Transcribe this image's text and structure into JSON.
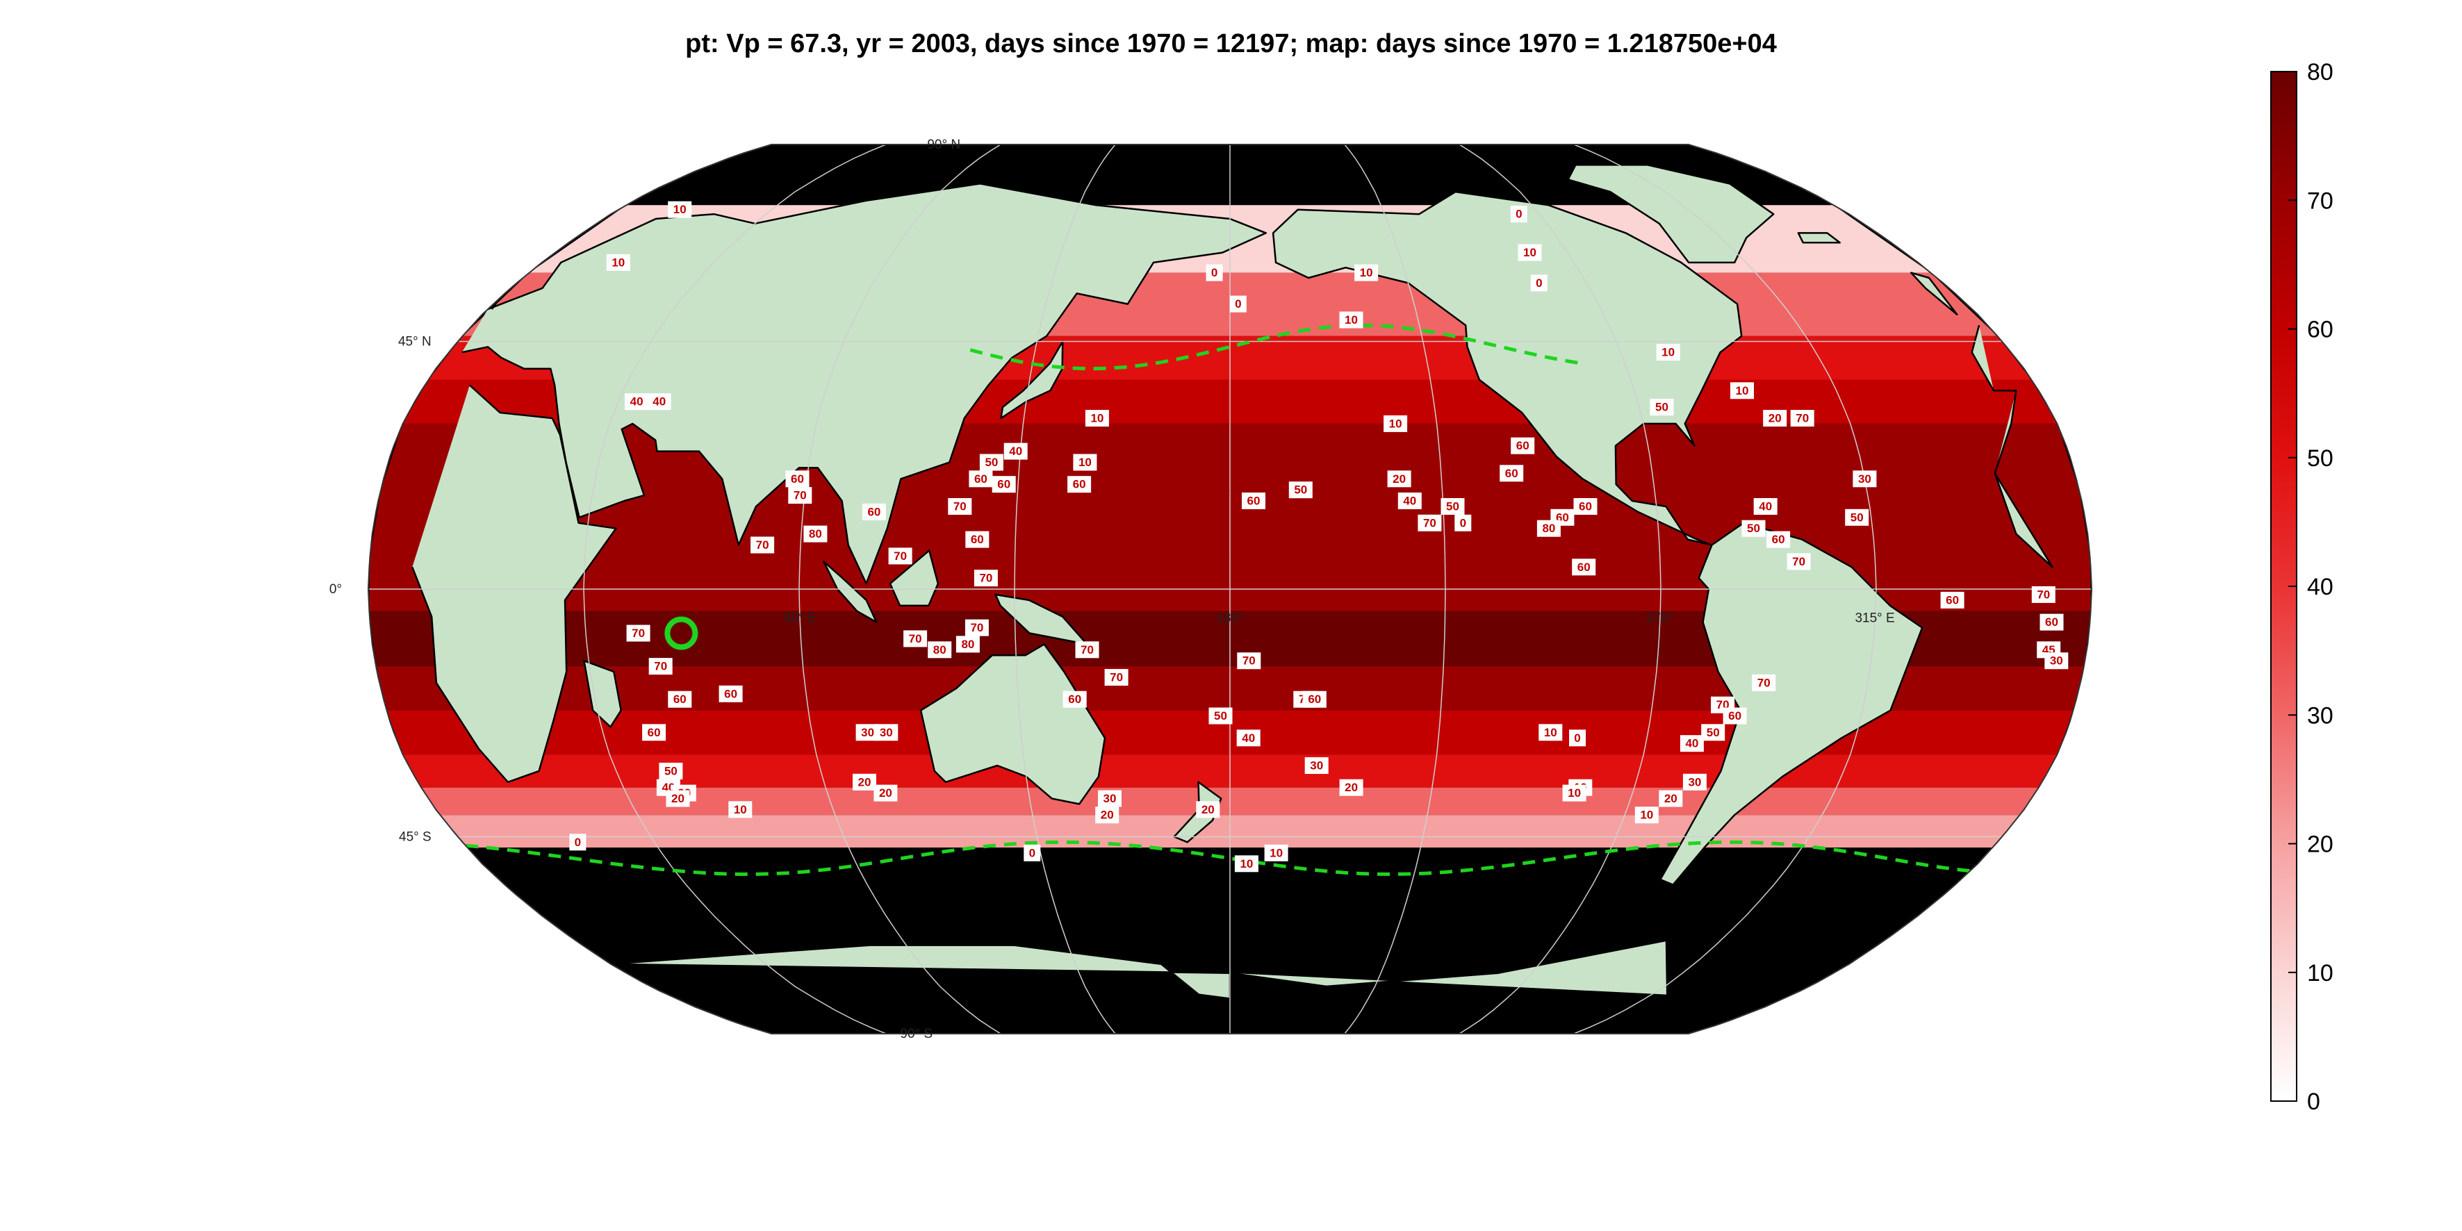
{
  "title": "pt: Vp = 67.3, yr = 2003, days since 1970 = 12197; map: days since 1970 = 1.218750e+04",
  "map": {
    "projection": "Robinson",
    "land_color": "#c9e3c9",
    "background_color": "#000000",
    "graticule_color": "#cfcfcf",
    "lat_labels": [
      "90° N",
      "45° N",
      "0°",
      "45° S",
      "90° S"
    ],
    "lon_labels": [
      "90° E",
      "180°",
      "270°",
      "315° E",
      "0° E"
    ],
    "point_marker": {
      "label": "Vp = 67.3",
      "color": "#1fd41f",
      "lon": 65,
      "lat": -8
    },
    "contour_zero_line_color": "#1fd41f",
    "contour_labels": [
      {
        "t": "70",
        "lon": -10,
        "lat": -1
      },
      {
        "t": "60",
        "lon": -8,
        "lat": -6
      },
      {
        "t": "45",
        "lon": -8,
        "lat": -11
      },
      {
        "t": "30",
        "lon": -6,
        "lat": -13
      },
      {
        "t": "70",
        "lon": 56,
        "lat": -8
      },
      {
        "t": "70",
        "lon": 60,
        "lat": -14
      },
      {
        "t": "60",
        "lon": 63,
        "lat": -20
      },
      {
        "t": "60",
        "lon": 56,
        "lat": -26
      },
      {
        "t": "50",
        "lon": 57,
        "lat": -33
      },
      {
        "t": "40",
        "lon": 55,
        "lat": -36
      },
      {
        "t": "30",
        "lon": 58,
        "lat": -37
      },
      {
        "t": "20",
        "lon": 56,
        "lat": -38
      },
      {
        "t": "10",
        "lon": 69,
        "lat": -40
      },
      {
        "t": "20",
        "lon": 99,
        "lat": -35
      },
      {
        "t": "20",
        "lon": 103,
        "lat": -37
      },
      {
        "t": "60",
        "lon": 74,
        "lat": -19
      },
      {
        "t": "30",
        "lon": 102,
        "lat": -26
      },
      {
        "t": "30",
        "lon": 106,
        "lat": -26
      },
      {
        "t": "70",
        "lon": 114,
        "lat": -9
      },
      {
        "t": "80",
        "lon": 119,
        "lat": -11
      },
      {
        "t": "80",
        "lon": 125,
        "lat": -10
      },
      {
        "t": "70",
        "lon": 127,
        "lat": -7
      },
      {
        "t": "70",
        "lon": 150,
        "lat": -11
      },
      {
        "t": "70",
        "lon": 156,
        "lat": -16
      },
      {
        "t": "60",
        "lon": 147,
        "lat": -20
      },
      {
        "t": "30",
        "lon": 153,
        "lat": -38
      },
      {
        "t": "20",
        "lon": 152,
        "lat": -41
      },
      {
        "t": "20",
        "lon": 175,
        "lat": -40
      },
      {
        "t": "50",
        "lon": 178,
        "lat": -23
      },
      {
        "t": "40",
        "lon": 184,
        "lat": -27
      },
      {
        "t": "30",
        "lon": 199,
        "lat": -32
      },
      {
        "t": "20",
        "lon": 207,
        "lat": -36
      },
      {
        "t": "70",
        "lon": 184,
        "lat": -13
      },
      {
        "t": "70",
        "lon": 196,
        "lat": -20
      },
      {
        "t": "60",
        "lon": 198,
        "lat": -20
      },
      {
        "t": "60",
        "lon": 148,
        "lat": 19
      },
      {
        "t": "10",
        "lon": 149,
        "lat": 23
      },
      {
        "t": "10",
        "lon": 151,
        "lat": 31
      },
      {
        "t": "40",
        "lon": 134,
        "lat": 25
      },
      {
        "t": "50",
        "lon": 129,
        "lat": 23
      },
      {
        "t": "60",
        "lon": 127,
        "lat": 20
      },
      {
        "t": "60",
        "lon": 132,
        "lat": 19
      },
      {
        "t": "70",
        "lon": 123,
        "lat": 15
      },
      {
        "t": "60",
        "lon": 127,
        "lat": 9
      },
      {
        "t": "70",
        "lon": 129,
        "lat": 2
      },
      {
        "t": "60",
        "lon": 105,
        "lat": 14
      },
      {
        "t": "70",
        "lon": 111,
        "lat": 6
      },
      {
        "t": "60",
        "lon": 88,
        "lat": 20
      },
      {
        "t": "70",
        "lon": 89,
        "lat": 17
      },
      {
        "t": "80",
        "lon": 93,
        "lat": 10
      },
      {
        "t": "70",
        "lon": 82,
        "lat": 8
      },
      {
        "t": "40",
        "lon": 49,
        "lat": 34
      },
      {
        "t": "40",
        "lon": 54,
        "lat": 34
      },
      {
        "t": "60",
        "lon": 185,
        "lat": 16
      },
      {
        "t": "50",
        "lon": 195,
        "lat": 18
      },
      {
        "t": "10",
        "lon": 209,
        "lat": 49
      },
      {
        "t": "10",
        "lon": 216,
        "lat": 30
      },
      {
        "t": "20",
        "lon": 216,
        "lat": 20
      },
      {
        "t": "40",
        "lon": 218,
        "lat": 16
      },
      {
        "t": "70",
        "lon": 222,
        "lat": 12
      },
      {
        "t": "50",
        "lon": 227,
        "lat": 15
      },
      {
        "t": "0",
        "lon": 229,
        "lat": 12
      },
      {
        "t": "60",
        "lon": 243,
        "lat": 26
      },
      {
        "t": "60",
        "lon": 240,
        "lat": 21
      },
      {
        "t": "60",
        "lon": 250,
        "lat": 13
      },
      {
        "t": "60",
        "lon": 255,
        "lat": 15
      },
      {
        "t": "60",
        "lon": 254,
        "lat": 4
      },
      {
        "t": "80",
        "lon": 247,
        "lat": 11
      },
      {
        "t": "50",
        "lon": 275,
        "lat": 33
      },
      {
        "t": "20",
        "lon": 299,
        "lat": 31
      },
      {
        "t": "70",
        "lon": 305,
        "lat": 31
      },
      {
        "t": "10",
        "lon": 294,
        "lat": 36
      },
      {
        "t": "30",
        "lon": 315,
        "lat": 20
      },
      {
        "t": "40",
        "lon": 293,
        "lat": 15
      },
      {
        "t": "50",
        "lon": 290,
        "lat": 11
      },
      {
        "t": "60",
        "lon": 295,
        "lat": 9
      },
      {
        "t": "70",
        "lon": 299,
        "lat": 5
      },
      {
        "t": "50",
        "lon": 312,
        "lat": 13
      },
      {
        "t": "60",
        "lon": 331,
        "lat": -2
      },
      {
        "t": "70",
        "lon": 293,
        "lat": -17
      },
      {
        "t": "70",
        "lon": 285,
        "lat": -21
      },
      {
        "t": "60",
        "lon": 288,
        "lat": -23
      },
      {
        "t": "50",
        "lon": 284,
        "lat": -26
      },
      {
        "t": "40",
        "lon": 280,
        "lat": -28
      },
      {
        "t": "30",
        "lon": 283,
        "lat": -35
      },
      {
        "t": "20",
        "lon": 279,
        "lat": -38
      },
      {
        "t": "10",
        "lon": 275,
        "lat": -41
      },
      {
        "t": "10",
        "lon": 258,
        "lat": -36
      },
      {
        "t": "10",
        "lon": 257,
        "lat": -37
      },
      {
        "t": "0",
        "lon": 255,
        "lat": -27
      },
      {
        "t": "10",
        "lon": 249,
        "lat": -26
      },
      {
        "t": "10",
        "lon": 184,
        "lat": -50
      },
      {
        "t": "10",
        "lon": 191,
        "lat": -48
      },
      {
        "t": "0",
        "lon": 133,
        "lat": -48
      },
      {
        "t": "0",
        "lon": 27,
        "lat": -46
      },
      {
        "t": "10",
        "lon": 18,
        "lat": 71
      },
      {
        "t": "10",
        "lon": 20,
        "lat": 60
      },
      {
        "t": "0",
        "lon": 264,
        "lat": 70
      },
      {
        "t": "10",
        "lon": 260,
        "lat": 62
      },
      {
        "t": "0",
        "lon": 258,
        "lat": 56
      },
      {
        "t": "0",
        "lon": 176,
        "lat": 58
      },
      {
        "t": "0",
        "lon": 182,
        "lat": 52
      },
      {
        "t": "10",
        "lon": 215,
        "lat": 58
      },
      {
        "t": "10",
        "lon": 281,
        "lat": 43
      }
    ]
  },
  "colorbar": {
    "min": 0,
    "max": 80,
    "ticks": [
      "0",
      "10",
      "20",
      "30",
      "40",
      "50",
      "60",
      "70",
      "80"
    ],
    "colors": [
      "#ffffff",
      "#fbd4d4",
      "#f6a1a1",
      "#f06666",
      "#ea3333",
      "#e01010",
      "#c20000",
      "#9b0000",
      "#6a0000"
    ]
  }
}
